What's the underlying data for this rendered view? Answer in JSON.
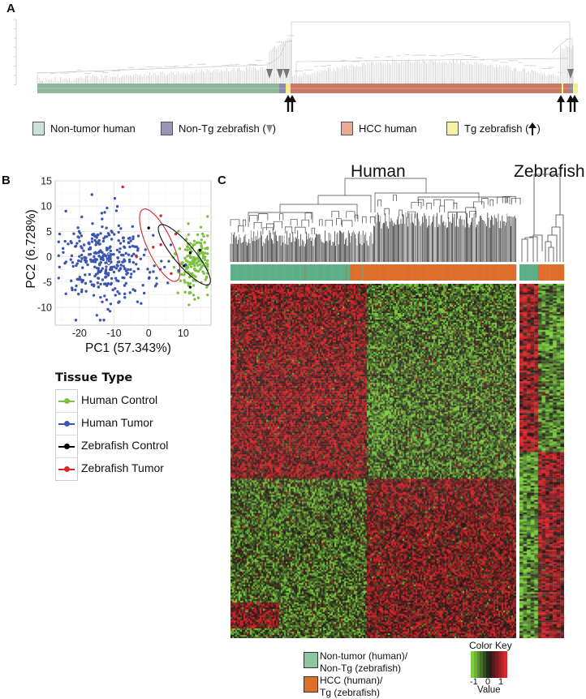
{
  "figure": {
    "panel_labels": {
      "a": "A",
      "b": "B",
      "c": "C"
    }
  },
  "panel_a": {
    "legend": [
      {
        "label": "Non-tumor human",
        "color": "#c9e3cf"
      },
      {
        "label": "Non-Tg zebrafish (",
        "suffix": ")",
        "marker": "gray-triangle-icon",
        "color": "#9896b8"
      },
      {
        "label": "HCC human",
        "color": "#eba892"
      },
      {
        "label": "Tg zebrafish (",
        "suffix": ")",
        "marker": "up-arrow-icon",
        "color": "#f7f2a0"
      }
    ],
    "bar_colors": {
      "nontumor_human": "#8fb89a",
      "nontg_zebrafish": "#8b8ab0",
      "hcc_human": "#c97a62",
      "tg_zebrafish": "#f3ee8a"
    }
  },
  "chart_data": [
    {
      "type": "scatter",
      "title": "",
      "xlabel": "PC1 (57.343%)",
      "ylabel": "PC2 (6.728%)",
      "xlim": [
        -27,
        18
      ],
      "ylim": [
        -13.5,
        15
      ],
      "xticks": [
        -20,
        -10,
        0,
        10
      ],
      "yticks": [
        -10,
        -5,
        0,
        5,
        10,
        15
      ],
      "grid": true,
      "legend_title": "Tissue Type",
      "legend_position": "bottom-left",
      "series": [
        {
          "name": "Human Control",
          "color": "#7dc142",
          "n": 160,
          "center": [
            13.5,
            -0.5
          ],
          "spread": [
            2.4,
            3.2
          ]
        },
        {
          "name": "Human Tumor",
          "color": "#3c56b0",
          "n": 330,
          "center": [
            -12,
            -1
          ],
          "spread": [
            6.5,
            4.8
          ]
        },
        {
          "name": "Zebrafish Control",
          "color": "#000000",
          "points": [
            [
              0,
              5.7
            ],
            [
              12,
              0.8
            ],
            [
              14.8,
              1.3
            ],
            [
              10.2,
              -1.8
            ],
            [
              12,
              -6
            ]
          ]
        },
        {
          "name": "Zebrafish Tumor",
          "color": "#d7262a",
          "points": [
            [
              -7.5,
              13.8
            ],
            [
              3.5,
              8.1
            ],
            [
              7.8,
              4.5
            ],
            [
              1.3,
              1.9
            ],
            [
              3.5,
              2.4
            ],
            [
              -3.5,
              0
            ],
            [
              6.5,
              -3.3
            ]
          ]
        }
      ],
      "ellipses": [
        {
          "name": "Human Tumor",
          "color": "#3c56b0",
          "center": [
            -11.5,
            -0.4
          ],
          "axes": [
            0.7,
            1.2
          ],
          "angle_deg": 0
        },
        {
          "name": "Zebrafish Tumor",
          "color": "#d7262a",
          "center": [
            3.2,
            2.3
          ],
          "axes": [
            3.6,
            7.8
          ],
          "angle_deg": 25
        },
        {
          "name": "Zebrafish Control",
          "color": "#111111",
          "center": [
            10.3,
            0.4
          ],
          "axes": [
            3.0,
            7.6
          ],
          "angle_deg": 40
        }
      ]
    },
    {
      "type": "heatmap",
      "titles": {
        "human": "Human",
        "zebrafish": "Zebrafish"
      },
      "color_key": {
        "title": "Color Key",
        "xlabel": "Value",
        "ticks": [
          -1,
          0,
          1
        ],
        "low": "#7ed13f",
        "mid": "#1a1a1a",
        "high": "#e0262b"
      },
      "annotation_legend": [
        {
          "label_line1": "Non-tumor (human)/",
          "label_line2": "Non-Tg (zebrafish)",
          "color": "#5fae8a"
        },
        {
          "label_line1": "HCC (human)/",
          "label_line2": "Tg (zebrafish)",
          "color": "#de6e2c"
        }
      ],
      "human_columns": {
        "nontumor": 155,
        "tumor": 215
      },
      "zebrafish_columns": {
        "control": 5,
        "tumor": 7
      }
    }
  ]
}
